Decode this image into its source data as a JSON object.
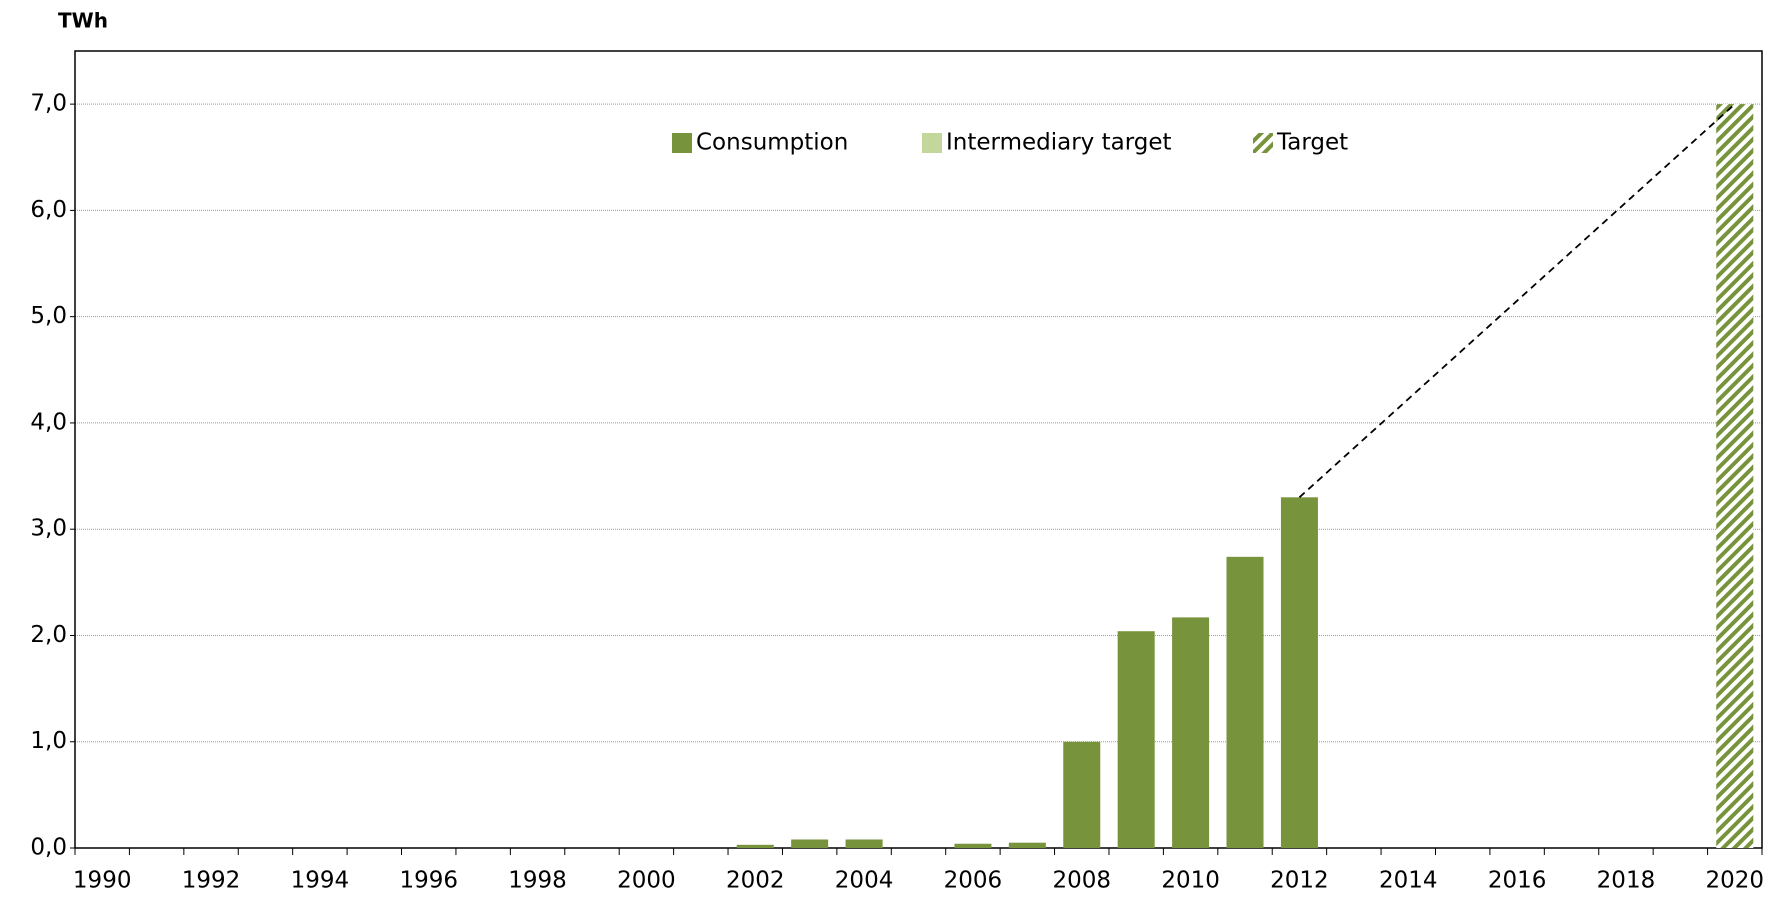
{
  "chart_data": {
    "type": "bar",
    "y_label": "TWh",
    "categories": [
      "1990",
      null,
      "1992",
      null,
      "1994",
      null,
      "1996",
      null,
      "1998",
      null,
      "2000",
      null,
      "2002",
      null,
      "2004",
      null,
      "2006",
      null,
      "2008",
      null,
      "2010",
      null,
      "2012",
      null,
      "2014",
      null,
      "2016",
      null,
      "2018",
      null,
      "2020"
    ],
    "series": [
      {
        "name": "Consumption",
        "color": "#77933c",
        "values": [
          null,
          null,
          null,
          null,
          null,
          null,
          null,
          null,
          null,
          null,
          null,
          null,
          0.03,
          0.08,
          0.08,
          null,
          0.04,
          0.05,
          1.0,
          2.04,
          2.17,
          2.74,
          3.3,
          null,
          null,
          null,
          null,
          null,
          null,
          null,
          null
        ]
      },
      {
        "name": "Intermediary target",
        "color": "#c3d69b",
        "values": [
          null,
          null,
          null,
          null,
          null,
          null,
          null,
          null,
          null,
          null,
          null,
          null,
          null,
          null,
          null,
          null,
          null,
          null,
          null,
          null,
          null,
          null,
          null,
          null,
          null,
          null,
          null,
          null,
          null,
          null,
          null
        ]
      },
      {
        "name": "Target",
        "color": "#77933c",
        "hatched": true,
        "values": [
          null,
          null,
          null,
          null,
          null,
          null,
          null,
          null,
          null,
          null,
          null,
          null,
          null,
          null,
          null,
          null,
          null,
          null,
          null,
          null,
          null,
          null,
          null,
          null,
          null,
          null,
          null,
          null,
          null,
          null,
          7.0
        ]
      }
    ],
    "ylim": [
      0,
      7.5
    ],
    "yticks": [
      {
        "value": 0,
        "label": "0,0"
      },
      {
        "value": 1,
        "label": "1,0"
      },
      {
        "value": 2,
        "label": "2,0"
      },
      {
        "value": 3,
        "label": "3,0"
      },
      {
        "value": 4,
        "label": "4,0"
      },
      {
        "value": 5,
        "label": "5,0"
      },
      {
        "value": 6,
        "label": "6,0"
      },
      {
        "value": 7,
        "label": "7,0"
      }
    ],
    "grid": true,
    "legend": "top"
  }
}
